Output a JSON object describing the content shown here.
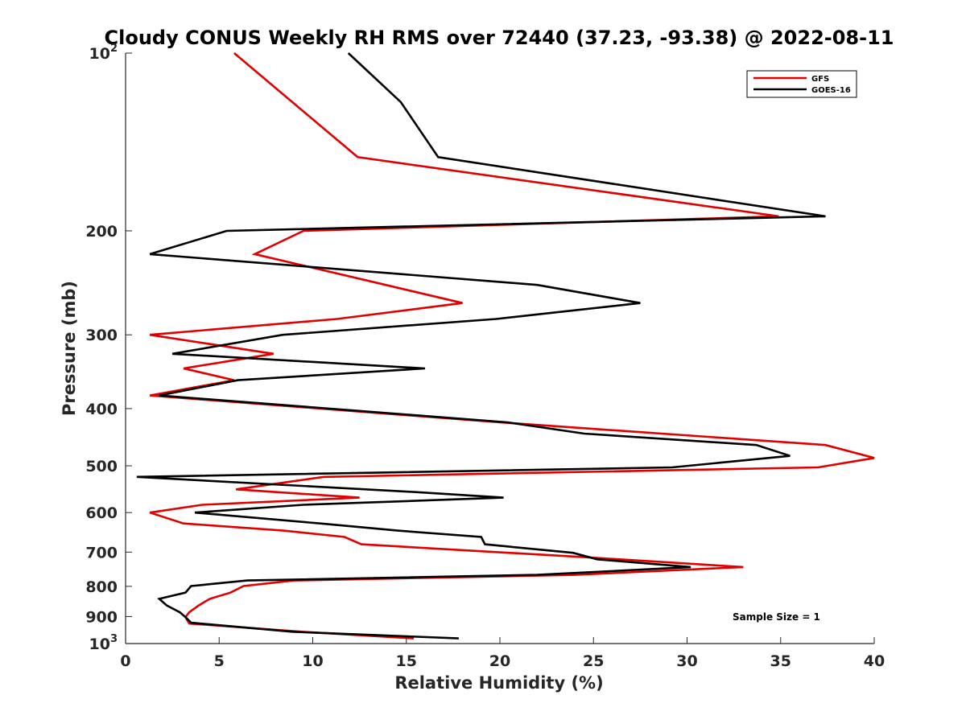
{
  "chart_data": {
    "type": "line",
    "title": "Cloudy CONUS Weekly RH RMS over 72440 (37.23, -93.38) @ 2022-08-11",
    "xlabel": "Relative Humidity (%)",
    "ylabel": "Pressure (mb)",
    "xlim": [
      0,
      40
    ],
    "ylim": [
      100,
      1000
    ],
    "y_scale": "log",
    "y_reversed": true,
    "x_ticks": [
      "0",
      "5",
      "10",
      "15",
      "20",
      "25",
      "30",
      "35",
      "40"
    ],
    "y_ticks": [
      {
        "value": 100,
        "base": "10",
        "exp": "2"
      },
      {
        "value": 200,
        "label": "200"
      },
      {
        "value": 300,
        "label": "300"
      },
      {
        "value": 400,
        "label": "400"
      },
      {
        "value": 500,
        "label": "500"
      },
      {
        "value": 600,
        "label": "600"
      },
      {
        "value": 700,
        "label": "700"
      },
      {
        "value": 800,
        "label": "800"
      },
      {
        "value": 900,
        "label": "900"
      },
      {
        "value": 1000,
        "base": "10",
        "exp": "3"
      }
    ],
    "legend_position": "top-right",
    "annotation": "Sample Size = 1",
    "series": [
      {
        "name": "GFS",
        "color": "#e00000",
        "points": [
          [
            5.8,
            100
          ],
          [
            12.4,
            150
          ],
          [
            34.9,
            189
          ],
          [
            9.5,
            200
          ],
          [
            6.9,
            219
          ],
          [
            13.9,
            247
          ],
          [
            18.0,
            265
          ],
          [
            11.3,
            282
          ],
          [
            1.3,
            300
          ],
          [
            7.9,
            323
          ],
          [
            3.1,
            342
          ],
          [
            5.8,
            358
          ],
          [
            1.3,
            380
          ],
          [
            20.0,
            422
          ],
          [
            37.4,
            461
          ],
          [
            40.0,
            485
          ],
          [
            37.0,
            503
          ],
          [
            10.6,
            522
          ],
          [
            5.9,
            548
          ],
          [
            12.5,
            566
          ],
          [
            4.1,
            582
          ],
          [
            1.3,
            600
          ],
          [
            3.1,
            626
          ],
          [
            8.5,
            644
          ],
          [
            11.7,
            660
          ],
          [
            12.6,
            679
          ],
          [
            24.5,
            714
          ],
          [
            33.0,
            742
          ],
          [
            24.0,
            765
          ],
          [
            9.0,
            782
          ],
          [
            6.3,
            799
          ],
          [
            5.6,
            820
          ],
          [
            4.5,
            840
          ],
          [
            3.9,
            862
          ],
          [
            3.4,
            885
          ],
          [
            3.2,
            902
          ],
          [
            3.4,
            925
          ],
          [
            9.4,
            955
          ],
          [
            15.4,
            980
          ]
        ]
      },
      {
        "name": "GOES-16",
        "color": "#000000",
        "points": [
          [
            11.9,
            100
          ],
          [
            14.7,
            121
          ],
          [
            16.7,
            150
          ],
          [
            37.4,
            189
          ],
          [
            5.4,
            200
          ],
          [
            1.3,
            219
          ],
          [
            22.0,
            247
          ],
          [
            27.5,
            265
          ],
          [
            19.8,
            282
          ],
          [
            8.4,
            300
          ],
          [
            2.5,
            323
          ],
          [
            16.0,
            342
          ],
          [
            6.0,
            358
          ],
          [
            1.8,
            380
          ],
          [
            20.4,
            422
          ],
          [
            24.5,
            441
          ],
          [
            33.7,
            461
          ],
          [
            35.5,
            481
          ],
          [
            29.2,
            503
          ],
          [
            0.6,
            522
          ],
          [
            15.5,
            554
          ],
          [
            20.2,
            566
          ],
          [
            9.5,
            582
          ],
          [
            3.7,
            600
          ],
          [
            10.4,
            626
          ],
          [
            14.6,
            644
          ],
          [
            19.0,
            660
          ],
          [
            19.2,
            679
          ],
          [
            23.9,
            702
          ],
          [
            25.2,
            720
          ],
          [
            30.2,
            742
          ],
          [
            22.0,
            765
          ],
          [
            6.5,
            782
          ],
          [
            3.5,
            799
          ],
          [
            3.2,
            820
          ],
          [
            1.8,
            840
          ],
          [
            2.2,
            862
          ],
          [
            2.9,
            885
          ],
          [
            3.2,
            902
          ],
          [
            3.5,
            922
          ],
          [
            8.9,
            955
          ],
          [
            17.8,
            980
          ]
        ]
      }
    ]
  }
}
